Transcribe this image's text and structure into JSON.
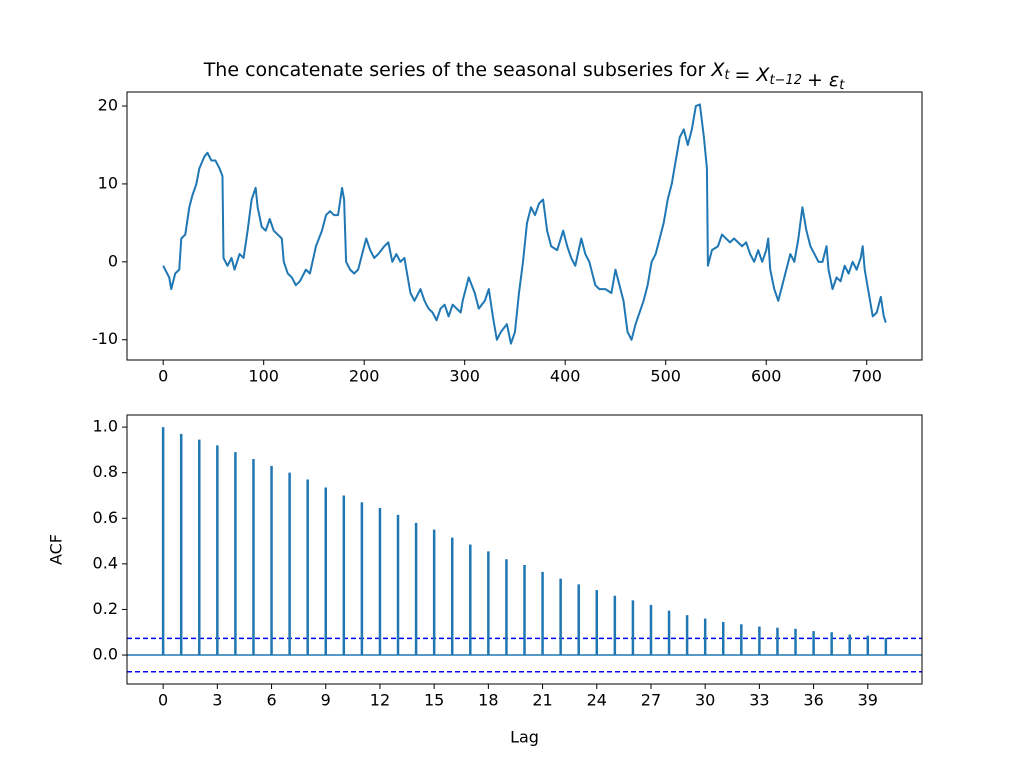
{
  "chart_data": [
    {
      "type": "line",
      "title": "The concatenate series of the seasonal subseries for",
      "title_math": [
        {
          "base": "X",
          "sub": "t"
        },
        "=",
        {
          "base": "X",
          "sub": "t−12"
        },
        "+",
        {
          "base": "ε",
          "sub": "t"
        }
      ],
      "x": [
        0,
        6,
        8,
        12,
        16,
        18,
        22,
        26,
        29,
        33,
        36,
        41,
        44,
        48,
        52,
        56,
        59,
        60,
        64,
        68,
        71,
        76,
        80,
        84,
        88,
        92,
        94,
        98,
        102,
        106,
        110,
        114,
        118,
        120,
        124,
        128,
        132,
        136,
        142,
        146,
        152,
        158,
        162,
        166,
        170,
        174,
        178,
        180,
        182,
        186,
        190,
        194,
        198,
        202,
        206,
        210,
        214,
        220,
        224,
        228,
        232,
        236,
        240,
        242,
        246,
        250,
        256,
        260,
        264,
        268,
        272,
        276,
        280,
        284,
        288,
        292,
        296,
        298,
        302,
        304,
        310,
        314,
        320,
        324,
        328,
        332,
        336,
        342,
        346,
        350,
        354,
        358,
        362,
        366,
        370,
        374,
        378,
        382,
        386,
        392,
        398,
        402,
        406,
        410,
        416,
        420,
        424,
        430,
        434,
        440,
        446,
        450,
        454,
        458,
        462,
        466,
        470,
        474,
        478,
        482,
        486,
        490,
        494,
        498,
        502,
        506,
        510,
        514,
        518,
        522,
        526,
        530,
        534,
        538,
        541,
        542,
        546,
        552,
        556,
        560,
        564,
        568,
        572,
        576,
        580,
        584,
        588,
        592,
        596,
        600,
        602,
        604,
        608,
        612,
        616,
        620,
        624,
        628,
        632,
        636,
        640,
        644,
        648,
        652,
        656,
        660,
        662,
        666,
        670,
        674,
        678,
        682,
        686,
        690,
        694,
        696,
        698,
        702,
        706,
        710,
        714,
        717,
        719
      ],
      "series": [
        {
          "color": "#1f77b4",
          "values": [
            -0.5,
            -2,
            -3.5,
            -1.5,
            -1,
            3,
            3.5,
            7,
            8.5,
            10,
            12,
            13.5,
            14,
            13,
            13,
            12,
            11,
            0.5,
            -0.5,
            0.5,
            -1,
            1,
            0.5,
            4,
            8,
            9.5,
            7,
            4.5,
            4,
            5.5,
            4,
            3.5,
            3,
            0,
            -1.5,
            -2,
            -3,
            -2.5,
            -1,
            -1.5,
            2,
            4,
            6,
            6.5,
            6,
            6,
            9.5,
            8,
            0,
            -1,
            -1.5,
            -1,
            1,
            3,
            1.5,
            0.5,
            1,
            2,
            2.5,
            0,
            1,
            0,
            0.5,
            -1,
            -4,
            -5,
            -3.5,
            -5,
            -6,
            -6.5,
            -7.5,
            -6,
            -5.5,
            -7,
            -5.5,
            -6,
            -6.5,
            -5,
            -3,
            -2,
            -4,
            -6,
            -5,
            -3.5,
            -7,
            -10,
            -9,
            -8,
            -10.5,
            -9,
            -4,
            0,
            5,
            7,
            6,
            7.5,
            8,
            4,
            2,
            1.5,
            4,
            2,
            0.5,
            -0.5,
            3,
            1,
            0,
            -3,
            -3.5,
            -3.5,
            -4,
            -1,
            -3,
            -5,
            -9,
            -10,
            -8,
            -6.5,
            -5,
            -3,
            0,
            1,
            3,
            5,
            8,
            10,
            13,
            16,
            17,
            15,
            17,
            20,
            20.2,
            16,
            12,
            -0.5,
            1.5,
            2,
            3.5,
            3,
            2.5,
            3,
            2.5,
            2,
            2.5,
            1,
            0,
            1.5,
            0,
            1.5,
            3,
            -1,
            -3.5,
            -5,
            -3,
            -1,
            1,
            0,
            3,
            7,
            4,
            2,
            1,
            0,
            0,
            2,
            -1,
            -3.5,
            -2,
            -2.5,
            -0.5,
            -1.5,
            0,
            -1,
            0.5,
            2,
            -1,
            -4,
            -7,
            -6.5,
            -4.5,
            -7,
            -7.8
          ]
        }
      ],
      "xlim": [
        -36,
        755
      ],
      "ylim": [
        -12.6,
        21.8
      ],
      "xticks": [
        0,
        100,
        200,
        300,
        400,
        500,
        600,
        700
      ],
      "yticks": [
        -10,
        0,
        10,
        20
      ]
    },
    {
      "type": "stem",
      "xlabel": "Lag",
      "ylabel": "ACF",
      "x": [
        0,
        1,
        2,
        3,
        4,
        5,
        6,
        7,
        8,
        9,
        10,
        11,
        12,
        13,
        14,
        15,
        16,
        17,
        18,
        19,
        20,
        21,
        22,
        23,
        24,
        25,
        26,
        27,
        28,
        29,
        30,
        31,
        32,
        33,
        34,
        35,
        36,
        37,
        38,
        39,
        40
      ],
      "values": [
        1.0,
        0.97,
        0.945,
        0.92,
        0.89,
        0.86,
        0.83,
        0.8,
        0.77,
        0.735,
        0.7,
        0.67,
        0.645,
        0.615,
        0.58,
        0.55,
        0.515,
        0.485,
        0.455,
        0.42,
        0.395,
        0.365,
        0.335,
        0.31,
        0.285,
        0.26,
        0.24,
        0.22,
        0.195,
        0.175,
        0.16,
        0.145,
        0.135,
        0.125,
        0.12,
        0.115,
        0.105,
        0.1,
        0.09,
        0.085,
        0.075
      ],
      "color": "#1f77b4",
      "confint": [
        -0.073,
        0.073
      ],
      "confint_color": "#0000ff",
      "xlim": [
        -2,
        42
      ],
      "ylim": [
        -0.127,
        1.053
      ],
      "xticks": [
        0,
        3,
        6,
        9,
        12,
        15,
        18,
        21,
        24,
        27,
        30,
        33,
        36,
        39
      ],
      "yticks": [
        {
          "value": 0,
          "label": "0.0"
        },
        0.2,
        0.4,
        0.6,
        0.8,
        {
          "value": 1,
          "label": "1.0"
        }
      ]
    }
  ]
}
